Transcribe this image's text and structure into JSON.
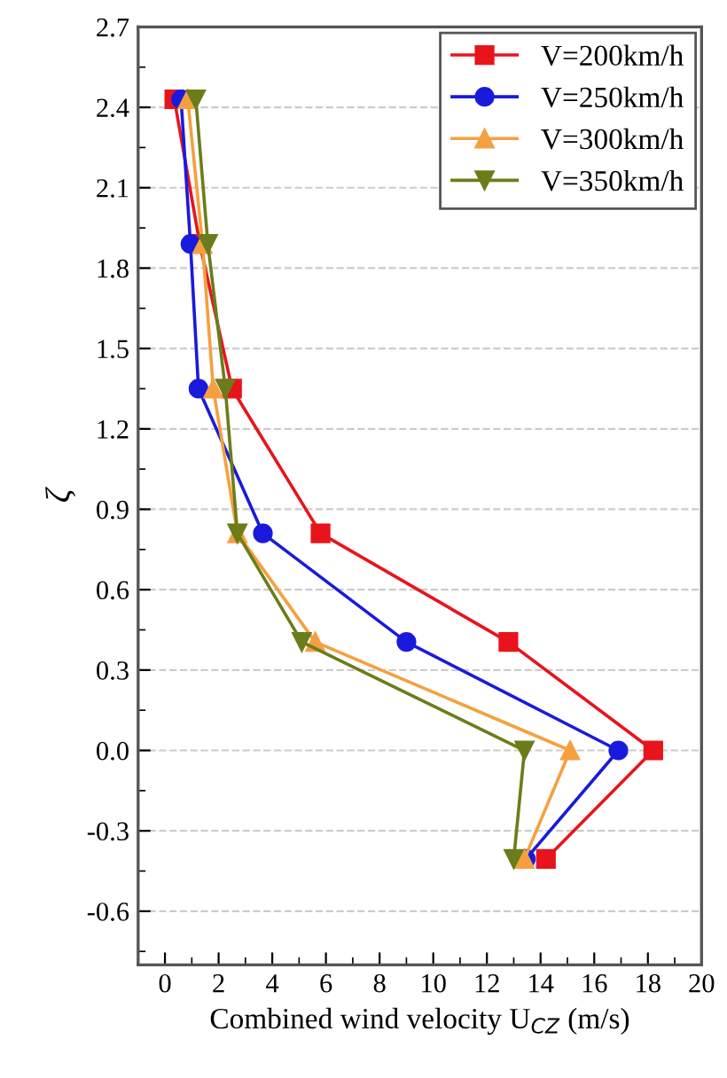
{
  "chart_data": {
    "type": "line",
    "xlabel": "Combined wind velocity U$_{CZ}$ (m/s)",
    "ylabel": "ζ",
    "xlim": [
      -1,
      20
    ],
    "xticks": [
      0,
      2,
      4,
      6,
      8,
      10,
      12,
      14,
      16,
      18,
      20
    ],
    "ylim": [
      -0.8,
      2.7
    ],
    "yticks": [
      {
        "value": -0.6,
        "label": "-0.6"
      },
      {
        "value": -0.3,
        "label": "-0.3"
      },
      {
        "value": 0,
        "label": "0.0"
      },
      0.3,
      0.6,
      0.9,
      {
        "value": 1.2,
        "label": "1.2"
      },
      1.5,
      1.8,
      2.1,
      2.4,
      2.7
    ],
    "grid": "y",
    "legend": "top right",
    "line_style": "solid",
    "series": [
      {
        "name": "V=200km/h",
        "color": "#e8141c",
        "marker": "square",
        "x": [
          0.35,
          1.3,
          2.5,
          5.8,
          12.8,
          18.2,
          14.2
        ],
        "values": [
          2.43,
          1.89,
          1.35,
          0.81,
          0.405,
          0,
          -0.405
        ]
      },
      {
        "name": "V=250km/h",
        "color": "#1a1adc",
        "marker": "circle",
        "x": [
          0.6,
          0.95,
          1.25,
          3.65,
          9.0,
          16.9,
          13.45
        ],
        "values": [
          2.43,
          1.89,
          1.35,
          0.81,
          0.405,
          0,
          -0.405
        ]
      },
      {
        "name": "V=300km/h",
        "color": "#f5a040",
        "marker": "triangle",
        "x": [
          0.85,
          1.4,
          1.8,
          2.7,
          5.6,
          15.1,
          13.4
        ],
        "values": [
          2.43,
          1.89,
          1.35,
          0.81,
          0.405,
          0,
          -0.405
        ]
      },
      {
        "name": "V=350km/h",
        "color": "#6b7d1a",
        "marker": "triangle_down",
        "x": [
          1.15,
          1.6,
          2.25,
          2.7,
          5.1,
          13.4,
          13.0
        ],
        "values": [
          2.43,
          1.89,
          1.35,
          0.81,
          0.405,
          0,
          -0.405
        ]
      }
    ]
  }
}
